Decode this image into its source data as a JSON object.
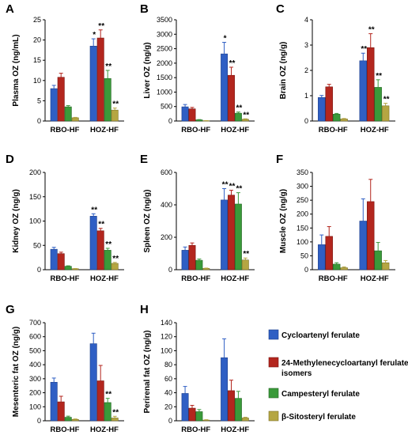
{
  "legend": [
    {
      "label": "Cycloartenyl ferulate",
      "color": "#2f5fc4"
    },
    {
      "label": "24-Methylenecycloartanyl ferulate isomers",
      "label_lines": [
        "24-Methylenecycloartanyl ferulate",
        "isomers"
      ],
      "color": "#b3261e"
    },
    {
      "label": "Campesteryl ferulate",
      "color": "#3a9a3a"
    },
    {
      "label": "β-Sitosteryl ferulate",
      "color": "#b5a642"
    }
  ],
  "chart_data": [
    {
      "panel": "A",
      "type": "bar",
      "ylabel": "Plasma OZ (ng/mL)",
      "ylim": [
        0,
        25
      ],
      "yticks": [
        0,
        5,
        10,
        15,
        20,
        25
      ],
      "categories": [
        "RBO-HF",
        "HOZ-HF"
      ],
      "series": [
        {
          "name": "Cycloartenyl ferulate",
          "values": [
            8.0,
            18.5
          ],
          "errors": [
            0.8,
            1.8
          ]
        },
        {
          "name": "24-Methylenecycloartanyl ferulate isomers",
          "values": [
            10.8,
            20.5
          ],
          "errors": [
            1.0,
            2.0
          ]
        },
        {
          "name": "Campesteryl ferulate",
          "values": [
            3.5,
            10.5
          ],
          "errors": [
            0.3,
            2.0
          ]
        },
        {
          "name": "β-Sitosteryl ferulate",
          "values": [
            0.8,
            2.7
          ],
          "errors": [
            0.1,
            0.5
          ]
        }
      ],
      "annotations": [
        [
          "",
          "",
          "",
          ""
        ],
        [
          "*",
          "**",
          "**",
          "**"
        ]
      ]
    },
    {
      "panel": "B",
      "type": "bar",
      "ylabel": "Liver OZ (ng/g)",
      "ylim": [
        0,
        3500
      ],
      "yticks": [
        0,
        500,
        1000,
        1500,
        2000,
        2500,
        3000,
        3500
      ],
      "categories": [
        "RBO-HF",
        "HOZ-HF"
      ],
      "series": [
        {
          "name": "Cycloartenyl ferulate",
          "values": [
            490,
            2320
          ],
          "errors": [
            80,
            400
          ]
        },
        {
          "name": "24-Methylenecycloartanyl ferulate isomers",
          "values": [
            420,
            1580
          ],
          "errors": [
            50,
            280
          ]
        },
        {
          "name": "Campesteryl ferulate",
          "values": [
            40,
            270
          ],
          "errors": [
            10,
            40
          ]
        },
        {
          "name": "β-Sitosteryl ferulate",
          "values": [
            10,
            60
          ],
          "errors": [
            5,
            15
          ]
        }
      ],
      "annotations": [
        [
          "",
          "",
          "",
          ""
        ],
        [
          "*",
          "**",
          "**",
          "**"
        ]
      ]
    },
    {
      "panel": "C",
      "type": "bar",
      "ylabel": "Brain OZ (ng/g)",
      "ylim": [
        0,
        4
      ],
      "yticks": [
        0,
        1,
        2,
        3,
        4
      ],
      "categories": [
        "RBO-HF",
        "HOZ-HF"
      ],
      "series": [
        {
          "name": "Cycloartenyl ferulate",
          "values": [
            0.93,
            2.38
          ],
          "errors": [
            0.08,
            0.3
          ]
        },
        {
          "name": "24-Methylenecycloartanyl ferulate isomers",
          "values": [
            1.35,
            2.9
          ],
          "errors": [
            0.1,
            0.55
          ]
        },
        {
          "name": "Campesteryl ferulate",
          "values": [
            0.27,
            1.33
          ],
          "errors": [
            0.03,
            0.3
          ]
        },
        {
          "name": "β-Sitosteryl ferulate",
          "values": [
            0.08,
            0.6
          ],
          "errors": [
            0.02,
            0.1
          ]
        }
      ],
      "annotations": [
        [
          "",
          "",
          "",
          ""
        ],
        [
          "**",
          "**",
          "**",
          "**"
        ]
      ]
    },
    {
      "panel": "D",
      "type": "bar",
      "ylabel": "Kidney OZ (ng/g)",
      "ylim": [
        0,
        200
      ],
      "yticks": [
        0,
        50,
        100,
        150,
        200
      ],
      "categories": [
        "RBO-HF",
        "HOZ-HF"
      ],
      "series": [
        {
          "name": "Cycloartenyl ferulate",
          "values": [
            42,
            110
          ],
          "errors": [
            4,
            5
          ]
        },
        {
          "name": "24-Methylenecycloartanyl ferulate isomers",
          "values": [
            33,
            80
          ],
          "errors": [
            3,
            5
          ]
        },
        {
          "name": "Campesteryl ferulate",
          "values": [
            7,
            40
          ],
          "errors": [
            1,
            4
          ]
        },
        {
          "name": "β-Sitosteryl ferulate",
          "values": [
            2,
            13
          ],
          "errors": [
            0.5,
            2
          ]
        }
      ],
      "annotations": [
        [
          "",
          "",
          "",
          ""
        ],
        [
          "**",
          "**",
          "**",
          "**"
        ]
      ]
    },
    {
      "panel": "E",
      "type": "bar",
      "ylabel": "Spleen OZ (ng/g)",
      "ylim": [
        0,
        600
      ],
      "yticks": [
        0,
        200,
        400,
        600
      ],
      "categories": [
        "RBO-HF",
        "HOZ-HF"
      ],
      "series": [
        {
          "name": "Cycloartenyl ferulate",
          "values": [
            120,
            430
          ],
          "errors": [
            20,
            70
          ]
        },
        {
          "name": "24-Methylenecycloartanyl ferulate isomers",
          "values": [
            150,
            460
          ],
          "errors": [
            15,
            30
          ]
        },
        {
          "name": "Campesteryl ferulate",
          "values": [
            58,
            405
          ],
          "errors": [
            8,
            70
          ]
        },
        {
          "name": "β-Sitosteryl ferulate",
          "values": [
            8,
            60
          ],
          "errors": [
            2,
            12
          ]
        }
      ],
      "annotations": [
        [
          "",
          "",
          "",
          ""
        ],
        [
          "**",
          "**",
          "**",
          "**"
        ]
      ]
    },
    {
      "panel": "F",
      "type": "bar",
      "ylabel": "Muscle OZ (ng/g)",
      "ylim": [
        0,
        350
      ],
      "yticks": [
        0,
        50,
        100,
        150,
        200,
        250,
        300,
        350
      ],
      "categories": [
        "RBO-HF",
        "HOZ-HF"
      ],
      "series": [
        {
          "name": "Cycloartenyl ferulate",
          "values": [
            90,
            175
          ],
          "errors": [
            35,
            80
          ]
        },
        {
          "name": "24-Methylenecycloartanyl ferulate isomers",
          "values": [
            120,
            245
          ],
          "errors": [
            35,
            80
          ]
        },
        {
          "name": "Campesteryl ferulate",
          "values": [
            20,
            68
          ],
          "errors": [
            5,
            30
          ]
        },
        {
          "name": "β-Sitosteryl ferulate",
          "values": [
            7,
            25
          ],
          "errors": [
            3,
            8
          ]
        }
      ],
      "annotations": [
        [
          "",
          "",
          "",
          ""
        ],
        [
          "",
          "",
          "",
          ""
        ]
      ]
    },
    {
      "panel": "G",
      "type": "bar",
      "ylabel": "Mesenteric fat OZ (ng/g)",
      "ylim": [
        0,
        700
      ],
      "yticks": [
        0,
        100,
        200,
        300,
        400,
        500,
        600,
        700
      ],
      "categories": [
        "RBO-HF",
        "HOZ-HF"
      ],
      "series": [
        {
          "name": "Cycloartenyl ferulate",
          "values": [
            275,
            550
          ],
          "errors": [
            30,
            75
          ]
        },
        {
          "name": "24-Methylenecycloartanyl ferulate isomers",
          "values": [
            135,
            285
          ],
          "errors": [
            40,
            110
          ]
        },
        {
          "name": "Campesteryl ferulate",
          "values": [
            25,
            130
          ],
          "errors": [
            8,
            30
          ]
        },
        {
          "name": "β-Sitosteryl ferulate",
          "values": [
            10,
            20
          ],
          "errors": [
            3,
            12
          ]
        }
      ],
      "annotations": [
        [
          "",
          "",
          "",
          ""
        ],
        [
          "",
          "",
          "**",
          "**"
        ]
      ]
    },
    {
      "panel": "H",
      "type": "bar",
      "ylabel": "Perirenal fat OZ (ng/g)",
      "ylim": [
        0,
        140
      ],
      "yticks": [
        0,
        20,
        40,
        60,
        80,
        100,
        120,
        140
      ],
      "categories": [
        "RBO-HF",
        "HOZ-HF"
      ],
      "series": [
        {
          "name": "Cycloartenyl ferulate",
          "values": [
            39,
            90
          ],
          "errors": [
            10,
            27
          ]
        },
        {
          "name": "24-Methylenecycloartanyl ferulate isomers",
          "values": [
            18,
            43
          ],
          "errors": [
            4,
            15
          ]
        },
        {
          "name": "Campesteryl ferulate",
          "values": [
            13,
            32
          ],
          "errors": [
            3,
            10
          ]
        },
        {
          "name": "β-Sitosteryl ferulate",
          "values": [
            1,
            4
          ],
          "errors": [
            0.5,
            1
          ]
        }
      ],
      "annotations": [
        [
          "",
          "",
          "",
          ""
        ],
        [
          "",
          "",
          "",
          ""
        ]
      ]
    }
  ]
}
